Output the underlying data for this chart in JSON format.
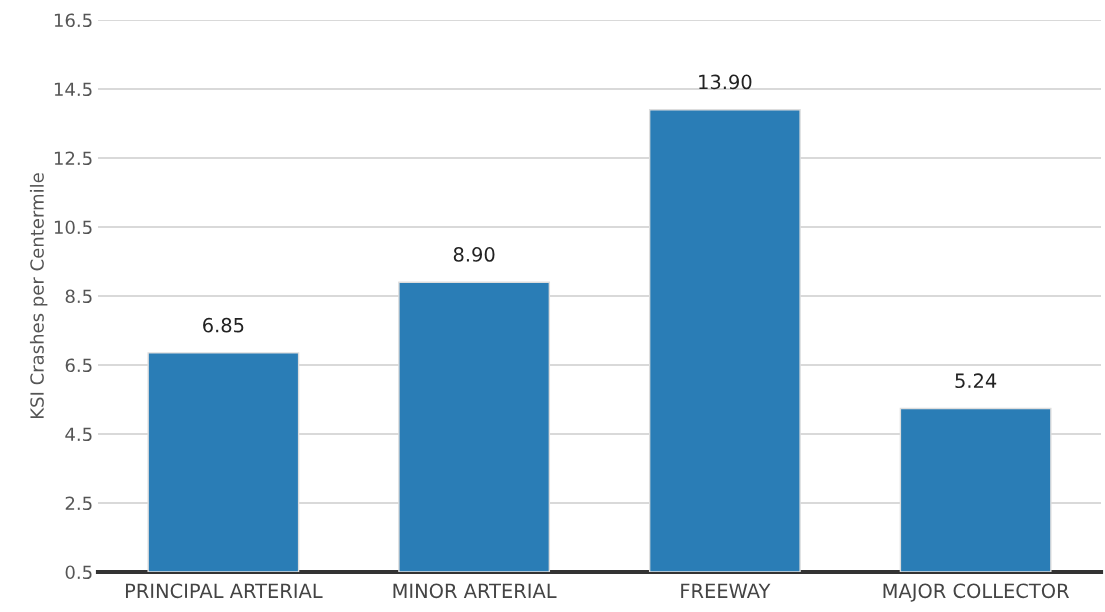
{
  "chart_data": {
    "type": "bar",
    "ylabel": "KSI Crashes per Centermile",
    "categories": [
      "PRINCIPAL ARTERIAL",
      "MINOR ARTERIAL",
      "FREEWAY",
      "MAJOR COLLECTOR"
    ],
    "values": [
      6.85,
      8.9,
      13.9,
      5.24
    ],
    "value_labels": [
      "6.85",
      "8.90",
      "13.90",
      "5.24"
    ],
    "color": "#2a7db6",
    "ylim": [
      0.5,
      16.5
    ],
    "yticks": [
      0.5,
      2.5,
      4.5,
      6.5,
      8.5,
      10.5,
      12.5,
      14.5,
      16.5
    ],
    "grid": "y"
  }
}
